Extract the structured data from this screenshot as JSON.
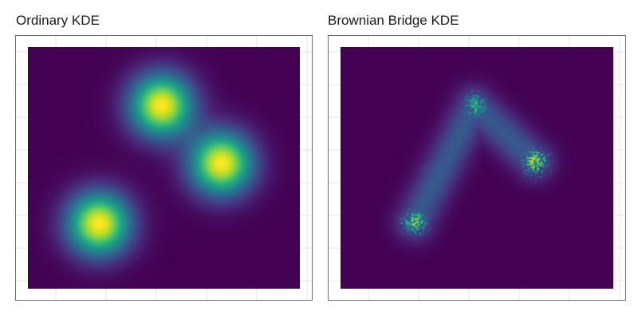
{
  "panels": [
    {
      "title": "Ordinary KDE"
    },
    {
      "title": "Brownian Bridge KDE"
    }
  ],
  "chart_data": [
    {
      "type": "heatmap",
      "title": "Ordinary KDE",
      "xlabel": "",
      "ylabel": "",
      "xlim": [
        0,
        1
      ],
      "ylim": [
        0,
        1
      ],
      "grid": true,
      "legend": "none",
      "colormap": "viridis",
      "background_color": "#440154",
      "centers": [
        {
          "x": 0.49,
          "y": 0.76,
          "intensity": 1.0
        },
        {
          "x": 0.71,
          "y": 0.52,
          "intensity": 1.0
        },
        {
          "x": 0.26,
          "y": 0.27,
          "intensity": 1.0
        }
      ],
      "bandwidth": 0.08
    },
    {
      "type": "heatmap",
      "title": "Brownian Bridge KDE",
      "xlabel": "",
      "ylabel": "",
      "xlim": [
        0,
        1
      ],
      "ylim": [
        0,
        1
      ],
      "grid": true,
      "legend": "none",
      "colormap": "viridis",
      "background_color": "#440154",
      "path": [
        {
          "x": 0.27,
          "y": 0.28
        },
        {
          "x": 0.49,
          "y": 0.76
        },
        {
          "x": 0.71,
          "y": 0.53
        }
      ],
      "point_clusters": [
        {
          "x": 0.27,
          "y": 0.28,
          "intensity": 0.9
        },
        {
          "x": 0.49,
          "y": 0.76,
          "intensity": 0.75
        },
        {
          "x": 0.71,
          "y": 0.53,
          "intensity": 1.0
        }
      ],
      "bridge_intensity": 0.28
    }
  ]
}
